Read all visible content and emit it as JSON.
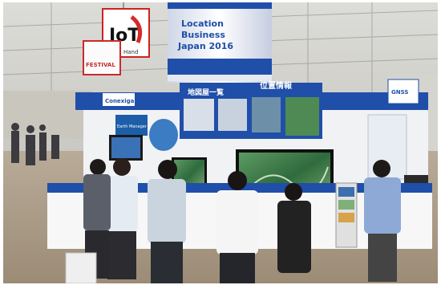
{
  "booth": {
    "hanging_sign_text": "IoT",
    "hanging_sign_subtext": "Hand",
    "left_banner_text": "FESTIVAL",
    "tower_text_1": "Location",
    "tower_text_2": "Business",
    "tower_text_3": "Japan 2016",
    "brand_logo": "Conexiga",
    "panel_left_heading": "地図屋一覧",
    "panel_right_heading": "位置情報",
    "panel_small_caption": "Earth Manager",
    "right_monitor_caption": "GNSS"
  },
  "colors": {
    "booth_blue": "#1f4fa8",
    "sky_white": "#f4f4f4",
    "floor": "#a99a86",
    "screen_green": "#2f6b3d"
  }
}
